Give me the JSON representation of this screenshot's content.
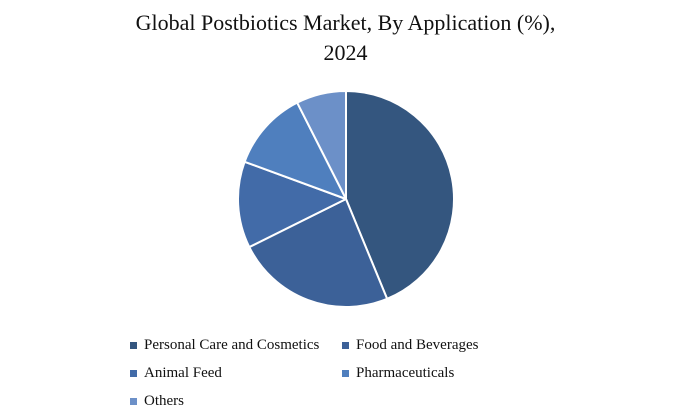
{
  "chart_data": {
    "type": "pie",
    "title_line1": "Global Postbiotics Market, By Application (%),",
    "title_line2": "2024",
    "legend_position": "bottom",
    "slices": [
      {
        "label": "Personal Care and Cosmetics",
        "value": 44,
        "color": "#34567f"
      },
      {
        "label": "Food and Beverages",
        "value": 24,
        "color": "#3c6198"
      },
      {
        "label": "Animal Feed",
        "value": 13,
        "color": "#426ba8"
      },
      {
        "label": "Pharmaceuticals",
        "value": 12,
        "color": "#4f7fbe"
      },
      {
        "label": "Others",
        "value": 7.5,
        "color": "#6c90c8"
      }
    ]
  }
}
